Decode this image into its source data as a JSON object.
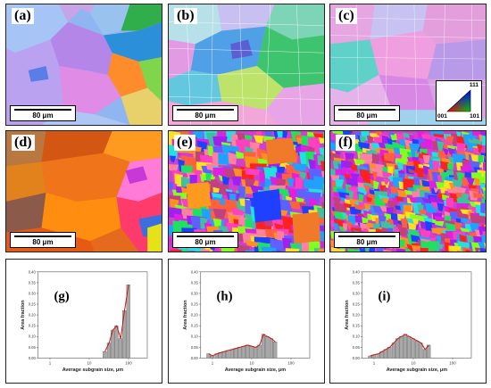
{
  "figure": {
    "panel_labels": [
      "(a)",
      "(b)",
      "(c)",
      "(d)",
      "(e)",
      "(f)",
      "(g)",
      "(h)",
      "(i)"
    ],
    "scale_bar_text": "80 μm",
    "ipf_legend": {
      "top": "111",
      "left": "001",
      "right": "101"
    }
  },
  "chart_data": [
    {
      "type": "bar",
      "panel": "(g)",
      "xlabel": "Average subgrain size, μm",
      "ylabel": "Area fraction",
      "xscale": "log",
      "xlim": [
        0.5,
        300
      ],
      "ylim": [
        0,
        0.4
      ],
      "yticks": [
        "0.00",
        "0.05",
        "0.10",
        "0.15",
        "0.20",
        "0.25",
        "0.30",
        "0.35",
        "0.40"
      ],
      "xticks": [
        "1",
        "10",
        "100"
      ],
      "x": [
        25,
        32,
        40,
        50,
        63,
        79,
        100
      ],
      "values": [
        0.03,
        0.07,
        0.13,
        0.15,
        0.09,
        0.22,
        0.34
      ]
    },
    {
      "type": "bar",
      "panel": "(h)",
      "xlabel": "Average subgrain size, μm",
      "ylabel": "Area fraction",
      "xscale": "log",
      "xlim": [
        0.5,
        300
      ],
      "ylim": [
        0,
        0.4
      ],
      "yticks": [
        "0.00",
        "0.05",
        "0.10",
        "0.15",
        "0.20",
        "0.25",
        "0.30",
        "0.35",
        "0.40"
      ],
      "xticks": [
        "1",
        "10",
        "100"
      ],
      "x": [
        0.8,
        1.0,
        1.3,
        1.6,
        2.0,
        2.5,
        3.2,
        4.0,
        5.0,
        6.3,
        7.9,
        10,
        12.6,
        15.8,
        20,
        25,
        32,
        40
      ],
      "values": [
        0.02,
        0.01,
        0.02,
        0.025,
        0.03,
        0.035,
        0.04,
        0.045,
        0.05,
        0.055,
        0.06,
        0.055,
        0.05,
        0.06,
        0.11,
        0.1,
        0.09,
        0.075
      ]
    },
    {
      "type": "bar",
      "panel": "(i)",
      "xlabel": "Average subgrain size, μm",
      "ylabel": "Area fraction",
      "xscale": "log",
      "xlim": [
        0.5,
        300
      ],
      "ylim": [
        0,
        0.4
      ],
      "yticks": [
        "0.00",
        "0.05",
        "0.10",
        "0.15",
        "0.20",
        "0.25",
        "0.30",
        "0.35",
        "0.40"
      ],
      "xticks": [
        "1",
        "10",
        "100"
      ],
      "x": [
        0.8,
        1.0,
        1.3,
        1.6,
        2.0,
        2.5,
        3.2,
        4.0,
        5.0,
        6.3,
        7.9,
        10,
        12.6,
        15.8,
        20,
        25
      ],
      "values": [
        0.01,
        0.015,
        0.02,
        0.03,
        0.04,
        0.05,
        0.07,
        0.09,
        0.1,
        0.11,
        0.1,
        0.09,
        0.08,
        0.07,
        0.04,
        0.06
      ]
    }
  ]
}
